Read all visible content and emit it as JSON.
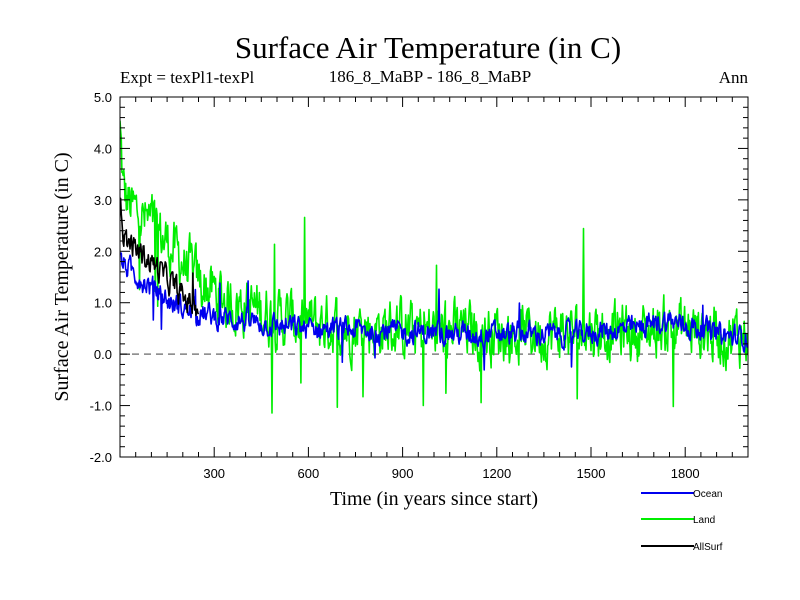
{
  "header": {
    "title": "Surface Air Temperature (in C)",
    "expt": "Expt = texPl1-texPl",
    "experiment_pair": "186_8_MaBP - 186_8_MaBP",
    "season": "Ann"
  },
  "colors": {
    "ocean": "#0000ee",
    "land": "#00ee00",
    "allsurf": "#000000",
    "zero_line": "#808080",
    "axes": "#000000"
  },
  "chart_data": {
    "type": "line",
    "title": "Surface Air Temperature (in C)",
    "xlabel": "Time (in years since start)",
    "ylabel": "Surface Air Temperature (in C)",
    "xlim": [
      0,
      2000
    ],
    "ylim": [
      -2.0,
      5.0
    ],
    "xticks": [
      300,
      600,
      900,
      1200,
      1500,
      1800
    ],
    "xtick_labels": [
      "300",
      "600",
      "900",
      "1200",
      "1500",
      "1800"
    ],
    "yticks": [
      -2.0,
      -1.0,
      0.0,
      1.0,
      2.0,
      3.0,
      4.0,
      5.0
    ],
    "ytick_labels": [
      "-2.0",
      "-1.0",
      "0.0",
      "1.0",
      "2.0",
      "3.0",
      "4.0",
      "5.0"
    ],
    "reference_line": 0.0,
    "legend_position": "bottom-right, outside plot",
    "grid": false,
    "series": [
      {
        "name": "Land",
        "color": "#00ee00",
        "x": [
          0,
          10,
          20,
          40,
          60,
          80,
          100,
          130,
          160,
          200,
          250,
          300,
          350,
          400,
          450,
          500,
          550,
          600,
          650,
          700,
          750,
          800,
          850,
          900,
          950,
          1000,
          1050,
          1100,
          1150,
          1200,
          1250,
          1300,
          1350,
          1400,
          1450,
          1500,
          1550,
          1600,
          1650,
          1700,
          1750,
          1800,
          1850,
          1900,
          1950,
          2000
        ],
        "y": [
          4.4,
          3.2,
          3.0,
          2.8,
          2.7,
          2.6,
          2.5,
          2.3,
          2.1,
          1.8,
          1.4,
          1.2,
          1.0,
          0.95,
          0.85,
          0.7,
          0.65,
          0.6,
          0.6,
          0.55,
          0.55,
          0.5,
          0.5,
          0.5,
          0.45,
          0.45,
          0.45,
          0.45,
          0.4,
          0.45,
          0.4,
          0.45,
          0.4,
          0.45,
          0.4,
          0.5,
          0.45,
          0.45,
          0.4,
          0.5,
          0.55,
          0.5,
          0.45,
          0.4,
          0.35,
          0.4
        ],
        "noise": 0.45
      },
      {
        "name": "Ocean",
        "color": "#0000ee",
        "x": [
          0,
          10,
          20,
          40,
          60,
          80,
          100,
          130,
          160,
          200,
          250,
          300,
          350,
          400,
          450,
          500,
          550,
          600,
          650,
          700,
          750,
          800,
          850,
          900,
          950,
          1000,
          1050,
          1100,
          1150,
          1200,
          1250,
          1300,
          1350,
          1400,
          1450,
          1500,
          1550,
          1600,
          1650,
          1700,
          1750,
          1800,
          1850,
          1900,
          1950,
          2000
        ],
        "y": [
          1.8,
          1.75,
          1.7,
          1.6,
          1.5,
          1.4,
          1.3,
          1.15,
          1.0,
          0.9,
          0.8,
          0.72,
          0.68,
          0.65,
          0.6,
          0.55,
          0.52,
          0.5,
          0.5,
          0.48,
          0.48,
          0.45,
          0.45,
          0.42,
          0.42,
          0.4,
          0.4,
          0.4,
          0.38,
          0.4,
          0.38,
          0.4,
          0.38,
          0.4,
          0.38,
          0.42,
          0.45,
          0.48,
          0.5,
          0.6,
          0.65,
          0.55,
          0.5,
          0.4,
          0.32,
          0.35
        ],
        "noise": 0.18
      },
      {
        "name": "AllSurf",
        "color": "#000000",
        "x": [
          0,
          10,
          20,
          40,
          60,
          80,
          100,
          130,
          160,
          200,
          250
        ],
        "y": [
          2.9,
          2.4,
          2.2,
          2.1,
          2.0,
          1.9,
          1.8,
          1.6,
          1.4,
          1.1,
          0.9
        ],
        "noise": 0.2
      }
    ],
    "legend": [
      {
        "name": "Ocean",
        "color": "#0000ee"
      },
      {
        "name": "Land",
        "color": "#00ee00"
      },
      {
        "name": "AllSurf",
        "color": "#000000"
      }
    ]
  }
}
